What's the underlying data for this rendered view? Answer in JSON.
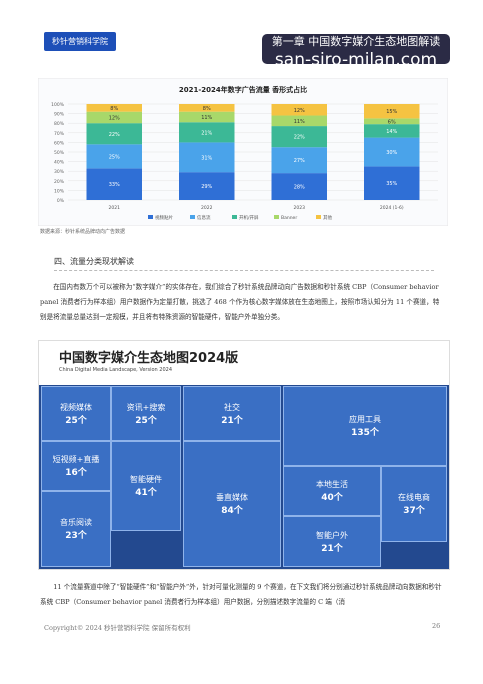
{
  "header": {
    "logo": "秒针营销科学院",
    "chapter": "第一章 中国数字媒介生态地图解读",
    "watermark": "san-siro-milan.com"
  },
  "chart_data": {
    "type": "bar",
    "stacked": true,
    "title": "2021-2024年数字广告流量 香形式占比",
    "categories": [
      "2021",
      "2022",
      "2023",
      "2024 (1-6)"
    ],
    "series": [
      {
        "name": "视频贴片",
        "color": "#2f6fd6",
        "values": [
          33,
          29,
          28,
          35
        ],
        "value_labels": [
          "33%",
          "29%",
          "28%",
          "35%"
        ]
      },
      {
        "name": "信息流",
        "color": "#4aa3ea",
        "values": [
          25,
          31,
          27,
          30
        ],
        "value_labels": [
          "25%",
          "31%",
          "27%",
          "30%"
        ]
      },
      {
        "name": "开机/开屏",
        "color": "#3cb896",
        "values": [
          22,
          21,
          22,
          14
        ],
        "value_labels": [
          "22%",
          "21%",
          "22%",
          "14%"
        ]
      },
      {
        "name": "Banner",
        "color": "#a8d86a",
        "values": [
          12,
          11,
          11,
          6
        ],
        "value_labels": [
          "12%",
          "11%",
          "11%",
          "6%"
        ]
      },
      {
        "name": "其他",
        "color": "#f5c342",
        "values": [
          8,
          8,
          12,
          15
        ],
        "value_labels": [
          "8%",
          "8%",
          "12%",
          "15%"
        ]
      }
    ],
    "ylim": [
      0,
      100
    ],
    "yticks": [
      {
        "value": 0,
        "label": "0%"
      },
      {
        "value": 10,
        "label": "10%"
      },
      {
        "value": 20,
        "label": "20%"
      },
      {
        "value": 30,
        "label": "30%"
      },
      {
        "value": 40,
        "label": "40%"
      },
      {
        "value": 50,
        "label": "50%"
      },
      {
        "value": 60,
        "label": "60%"
      },
      {
        "value": 70,
        "label": "70%"
      },
      {
        "value": 80,
        "label": "80%"
      },
      {
        "value": 90,
        "label": "90%"
      },
      {
        "value": 100,
        "label": "100%"
      }
    ],
    "grid": true,
    "source": "数据来源：秒针系统品牌动向广告数据"
  },
  "section": {
    "heading": "四、流量分类现状解读",
    "paragraph1": "在国内有数万个可以被称为“数字媒介”的实体存在，我们综合了秒针系统品牌动向广告数据和秒针系统 CBP（Consumer behavior panel 消费者行为样本组）用户数据作为定量打散，挑选了 468 个作为核心数字媒体放在生态地图上，按照市场认知分为 11 个赛道，特别是将流量总量达到一定规模，并且将有特殊资源的智能硬件，智能户外单独分类。",
    "paragraph2": "11 个流量赛道中除了“智能硬件”和“智能户外”外，针对可量化测量的 9 个赛道，在下文我们将分别通过秒针系统品牌动向数据和秒针系统 CBP（Consumer behavior panel 消费者行为样本组）用户数据，分别描述数字流量的 C 端（消"
  },
  "map": {
    "title": "中国数字媒介生态地图2024版",
    "subtitle": "China Digital Media Landscape, Version 2024",
    "tiles": [
      {
        "name": "视频媒体",
        "count": "25个"
      },
      {
        "name": "资讯+搜索",
        "count": "25个"
      },
      {
        "name": "社交",
        "count": "21个"
      },
      {
        "name": "应用工具",
        "count": "135个"
      },
      {
        "name": "短视频+直播",
        "count": "16个"
      },
      {
        "name": "智能硬件",
        "count": "41个"
      },
      {
        "name": "垂直媒体",
        "count": "84个"
      },
      {
        "name": "本地生活",
        "count": "40个"
      },
      {
        "name": "在线电商",
        "count": "37个"
      },
      {
        "name": "智能户外",
        "count": "21个"
      },
      {
        "name": "音乐阅读",
        "count": "23个"
      }
    ]
  },
  "footer": {
    "copyright": "Copyright© 2024 秒针营销科学院 保留所有权利",
    "page": "26"
  }
}
